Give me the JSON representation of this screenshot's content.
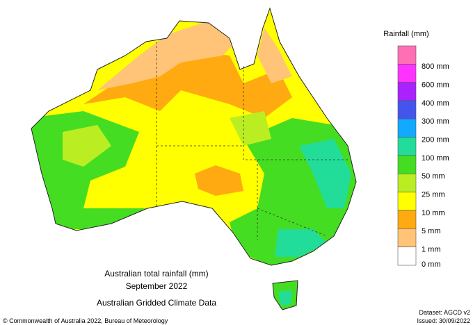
{
  "map": {
    "title_lines": [
      "Australian total rainfall (mm)",
      "September 2022",
      "Australian Gridded Climate Data"
    ]
  },
  "legend": {
    "title": "Rainfall (mm)",
    "colors": [
      "#ff6fb4",
      "#ff33ff",
      "#aa22ff",
      "#4455ee",
      "#11aaff",
      "#22dd99",
      "#44dd22",
      "#bbee22",
      "#ffff00",
      "#ffaa11",
      "#ffc477",
      "#ffffff"
    ],
    "labels": [
      "800 mm",
      "600 mm",
      "400 mm",
      "300 mm",
      "200 mm",
      "100 mm",
      "50 mm",
      "25 mm",
      "10 mm",
      "5 mm",
      "1 mm",
      "0 mm"
    ]
  },
  "footer": {
    "copyright": "© Commonwealth of Australia 2022, Bureau of Meteorology",
    "dataset": "Dataset: AGCD v2",
    "issued": "Issued: 30/09/2022"
  }
}
